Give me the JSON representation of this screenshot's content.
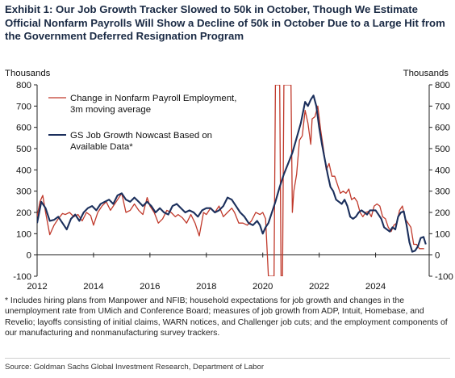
{
  "title": "Exhibit 1: Our Job Growth Tracker Slowed to 50k in October, Though We Estimate Official Nonfarm Payrolls Will Show a Decline of 50k in October Due to a Large Hit from the Government Deferred Resignation Program",
  "footnote": "* Includes hiring plans from Manpower and NFIB; household expectations for job growth and changes in the unemployment rate from UMich and Conference Board; measures of job growth from ADP, Intuit, Homebase, and Revelio; layoffs consisting of initial claims, WARN notices, and Challenger job cuts; and the employment components of our manufacturing and nonmanufacturing survey trackers.",
  "source": "Source: Goldman Sachs Global Investment Research, Department of Labor",
  "colors": {
    "nfp": "#c0392b",
    "gs": "#1b2f5c",
    "axis": "#222222",
    "text": "#111111"
  },
  "chart_data": {
    "type": "line",
    "ylabel_left": "Thousands",
    "ylabel_right": "Thousands",
    "ylim": [
      -100,
      800
    ],
    "xlim": [
      2012,
      2025.9
    ],
    "yticks": [
      -100,
      0,
      100,
      200,
      300,
      400,
      500,
      600,
      700,
      800
    ],
    "xticks": [
      2012,
      2014,
      2016,
      2018,
      2020,
      2022,
      2024
    ],
    "grid": false,
    "legend_position": "top-left",
    "series": [
      {
        "name": "Change in Nonfarm Payroll Employment, 3m moving average",
        "color": "#c0392b",
        "points": [
          [
            2012.0,
            180
          ],
          [
            2012.1,
            250
          ],
          [
            2012.2,
            280
          ],
          [
            2012.3,
            200
          ],
          [
            2012.45,
            95
          ],
          [
            2012.6,
            140
          ],
          [
            2012.75,
            170
          ],
          [
            2012.9,
            195
          ],
          [
            2013.0,
            190
          ],
          [
            2013.15,
            200
          ],
          [
            2013.3,
            180
          ],
          [
            2013.45,
            190
          ],
          [
            2013.6,
            160
          ],
          [
            2013.75,
            200
          ],
          [
            2013.9,
            185
          ],
          [
            2014.0,
            140
          ],
          [
            2014.15,
            200
          ],
          [
            2014.3,
            230
          ],
          [
            2014.45,
            250
          ],
          [
            2014.6,
            210
          ],
          [
            2014.75,
            240
          ],
          [
            2014.9,
            270
          ],
          [
            2015.0,
            290
          ],
          [
            2015.15,
            200
          ],
          [
            2015.3,
            210
          ],
          [
            2015.45,
            240
          ],
          [
            2015.6,
            210
          ],
          [
            2015.75,
            190
          ],
          [
            2015.9,
            270
          ],
          [
            2016.0,
            230
          ],
          [
            2016.15,
            200
          ],
          [
            2016.3,
            150
          ],
          [
            2016.45,
            170
          ],
          [
            2016.6,
            210
          ],
          [
            2016.75,
            200
          ],
          [
            2016.9,
            180
          ],
          [
            2017.0,
            190
          ],
          [
            2017.15,
            175
          ],
          [
            2017.3,
            150
          ],
          [
            2017.45,
            190
          ],
          [
            2017.6,
            150
          ],
          [
            2017.75,
            90
          ],
          [
            2017.9,
            200
          ],
          [
            2018.0,
            190
          ],
          [
            2018.15,
            220
          ],
          [
            2018.3,
            200
          ],
          [
            2018.45,
            230
          ],
          [
            2018.6,
            180
          ],
          [
            2018.75,
            200
          ],
          [
            2018.9,
            220
          ],
          [
            2019.0,
            200
          ],
          [
            2019.15,
            150
          ],
          [
            2019.3,
            150
          ],
          [
            2019.45,
            140
          ],
          [
            2019.6,
            160
          ],
          [
            2019.75,
            200
          ],
          [
            2019.9,
            190
          ],
          [
            2020.0,
            200
          ],
          [
            2020.1,
            170
          ],
          [
            2020.2,
            -100
          ],
          [
            2020.25,
            -100
          ],
          [
            2020.28,
            -100
          ],
          [
            2020.3,
            -100
          ],
          [
            2020.35,
            -100
          ],
          [
            2020.4,
            -100
          ],
          [
            2020.45,
            800
          ],
          [
            2020.5,
            800
          ],
          [
            2020.55,
            800
          ],
          [
            2020.6,
            800
          ],
          [
            2020.65,
            -100
          ],
          [
            2020.7,
            -100
          ],
          [
            2020.75,
            800
          ],
          [
            2020.8,
            800
          ],
          [
            2020.85,
            800
          ],
          [
            2020.9,
            800
          ],
          [
            2020.95,
            800
          ],
          [
            2021.0,
            800
          ],
          [
            2021.05,
            200
          ],
          [
            2021.1,
            300
          ],
          [
            2021.2,
            380
          ],
          [
            2021.3,
            540
          ],
          [
            2021.4,
            560
          ],
          [
            2021.5,
            680
          ],
          [
            2021.6,
            620
          ],
          [
            2021.7,
            520
          ],
          [
            2021.75,
            640
          ],
          [
            2021.85,
            650
          ],
          [
            2021.95,
            700
          ],
          [
            2022.05,
            590
          ],
          [
            2022.15,
            500
          ],
          [
            2022.25,
            400
          ],
          [
            2022.35,
            430
          ],
          [
            2022.45,
            370
          ],
          [
            2022.55,
            370
          ],
          [
            2022.65,
            330
          ],
          [
            2022.75,
            290
          ],
          [
            2022.85,
            300
          ],
          [
            2022.95,
            290
          ],
          [
            2023.05,
            310
          ],
          [
            2023.15,
            260
          ],
          [
            2023.25,
            270
          ],
          [
            2023.35,
            250
          ],
          [
            2023.45,
            200
          ],
          [
            2023.55,
            180
          ],
          [
            2023.65,
            200
          ],
          [
            2023.75,
            205
          ],
          [
            2023.85,
            180
          ],
          [
            2023.95,
            230
          ],
          [
            2024.05,
            240
          ],
          [
            2024.15,
            230
          ],
          [
            2024.25,
            180
          ],
          [
            2024.35,
            170
          ],
          [
            2024.45,
            130
          ],
          [
            2024.55,
            110
          ],
          [
            2024.65,
            140
          ],
          [
            2024.75,
            150
          ],
          [
            2024.85,
            210
          ],
          [
            2024.95,
            230
          ],
          [
            2025.05,
            170
          ],
          [
            2025.15,
            150
          ],
          [
            2025.25,
            130
          ],
          [
            2025.35,
            50
          ],
          [
            2025.45,
            50
          ],
          [
            2025.55,
            30
          ],
          [
            2025.65,
            30
          ],
          [
            2025.72,
            30
          ]
        ]
      },
      {
        "name": "GS Job Growth Nowcast Based on Available Data*",
        "color": "#1b2f5c",
        "points": [
          [
            2012.0,
            150
          ],
          [
            2012.15,
            250
          ],
          [
            2012.3,
            220
          ],
          [
            2012.45,
            160
          ],
          [
            2012.6,
            165
          ],
          [
            2012.75,
            180
          ],
          [
            2012.9,
            150
          ],
          [
            2013.05,
            120
          ],
          [
            2013.2,
            170
          ],
          [
            2013.35,
            190
          ],
          [
            2013.5,
            160
          ],
          [
            2013.65,
            200
          ],
          [
            2013.8,
            220
          ],
          [
            2013.95,
            230
          ],
          [
            2014.1,
            210
          ],
          [
            2014.25,
            240
          ],
          [
            2014.4,
            250
          ],
          [
            2014.55,
            260
          ],
          [
            2014.7,
            240
          ],
          [
            2014.85,
            280
          ],
          [
            2015.0,
            290
          ],
          [
            2015.15,
            260
          ],
          [
            2015.3,
            250
          ],
          [
            2015.45,
            270
          ],
          [
            2015.6,
            250
          ],
          [
            2015.75,
            230
          ],
          [
            2015.9,
            250
          ],
          [
            2016.05,
            230
          ],
          [
            2016.2,
            200
          ],
          [
            2016.35,
            220
          ],
          [
            2016.5,
            200
          ],
          [
            2016.65,
            190
          ],
          [
            2016.8,
            230
          ],
          [
            2016.95,
            240
          ],
          [
            2017.1,
            220
          ],
          [
            2017.25,
            200
          ],
          [
            2017.4,
            210
          ],
          [
            2017.55,
            200
          ],
          [
            2017.7,
            180
          ],
          [
            2017.85,
            210
          ],
          [
            2018.0,
            220
          ],
          [
            2018.15,
            220
          ],
          [
            2018.3,
            200
          ],
          [
            2018.45,
            210
          ],
          [
            2018.6,
            230
          ],
          [
            2018.75,
            270
          ],
          [
            2018.9,
            260
          ],
          [
            2019.05,
            230
          ],
          [
            2019.2,
            200
          ],
          [
            2019.35,
            180
          ],
          [
            2019.5,
            150
          ],
          [
            2019.65,
            140
          ],
          [
            2019.8,
            160
          ],
          [
            2019.9,
            140
          ],
          [
            2020.0,
            100
          ],
          [
            2020.1,
            130
          ],
          [
            2020.2,
            150
          ],
          [
            2020.3,
            190
          ],
          [
            2020.45,
            250
          ],
          [
            2020.6,
            320
          ],
          [
            2020.75,
            380
          ],
          [
            2020.9,
            430
          ],
          [
            2021.05,
            480
          ],
          [
            2021.2,
            550
          ],
          [
            2021.35,
            620
          ],
          [
            2021.5,
            720
          ],
          [
            2021.6,
            700
          ],
          [
            2021.7,
            730
          ],
          [
            2021.8,
            750
          ],
          [
            2021.9,
            700
          ],
          [
            2022.0,
            600
          ],
          [
            2022.1,
            520
          ],
          [
            2022.2,
            450
          ],
          [
            2022.3,
            380
          ],
          [
            2022.4,
            320
          ],
          [
            2022.5,
            300
          ],
          [
            2022.6,
            260
          ],
          [
            2022.7,
            250
          ],
          [
            2022.8,
            240
          ],
          [
            2022.9,
            260
          ],
          [
            2023.0,
            230
          ],
          [
            2023.1,
            180
          ],
          [
            2023.2,
            170
          ],
          [
            2023.3,
            180
          ],
          [
            2023.4,
            200
          ],
          [
            2023.5,
            210
          ],
          [
            2023.6,
            200
          ],
          [
            2023.7,
            190
          ],
          [
            2023.8,
            210
          ],
          [
            2023.9,
            210
          ],
          [
            2024.0,
            210
          ],
          [
            2024.1,
            190
          ],
          [
            2024.2,
            170
          ],
          [
            2024.3,
            130
          ],
          [
            2024.4,
            120
          ],
          [
            2024.5,
            110
          ],
          [
            2024.6,
            130
          ],
          [
            2024.7,
            120
          ],
          [
            2024.8,
            180
          ],
          [
            2024.9,
            200
          ],
          [
            2025.0,
            205
          ],
          [
            2025.1,
            140
          ],
          [
            2025.2,
            60
          ],
          [
            2025.3,
            15
          ],
          [
            2025.4,
            20
          ],
          [
            2025.5,
            40
          ],
          [
            2025.6,
            80
          ],
          [
            2025.7,
            85
          ],
          [
            2025.78,
            50
          ]
        ]
      }
    ]
  }
}
